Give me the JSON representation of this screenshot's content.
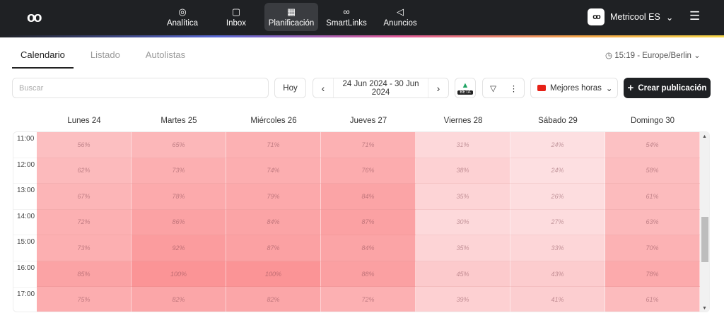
{
  "header": {
    "nav": [
      {
        "label": "Analítica",
        "icon": "analytics-icon",
        "glyph": "◎"
      },
      {
        "label": "Inbox",
        "icon": "inbox-icon",
        "glyph": "▢"
      },
      {
        "label": "Planificación",
        "icon": "calendar-icon",
        "glyph": "▦"
      },
      {
        "label": "SmartLinks",
        "icon": "link-icon",
        "glyph": "∞"
      },
      {
        "label": "Anuncios",
        "icon": "megaphone-icon",
        "glyph": "◁"
      }
    ],
    "account": "Metricool ES"
  },
  "tabs": [
    "Calendario",
    "Listado",
    "Autolistas"
  ],
  "timezone": "15:19 - Europe/Berlin",
  "toolbar": {
    "search_placeholder": "Buscar",
    "today": "Hoy",
    "date_range": "24 Jun 2024 - 30 Jun 2024",
    "beta": "BETA",
    "best_hours": "Mejores horas",
    "create": "Crear publicación"
  },
  "colors": {
    "low": "#fde3e5",
    "high": "#fb9496",
    "accent": "#1f2124"
  },
  "chart_data": {
    "type": "heatmap",
    "days": [
      "Lunes 24",
      "Martes 25",
      "Miércoles 26",
      "Jueves 27",
      "Viernes 28",
      "Sábado 29",
      "Domingo 30"
    ],
    "hours": [
      "11:00",
      "12:00",
      "13:00",
      "14:00",
      "15:00",
      "16:00",
      "17:00"
    ],
    "values": [
      [
        56,
        62,
        67,
        72,
        73,
        85,
        75
      ],
      [
        65,
        73,
        78,
        86,
        92,
        100,
        82
      ],
      [
        71,
        74,
        79,
        84,
        87,
        100,
        82
      ],
      [
        71,
        76,
        84,
        87,
        84,
        88,
        72
      ],
      [
        31,
        38,
        35,
        30,
        35,
        45,
        39
      ],
      [
        24,
        24,
        26,
        27,
        33,
        43,
        41
      ],
      [
        54,
        58,
        61,
        63,
        70,
        78,
        61
      ]
    ],
    "unit": "%"
  }
}
